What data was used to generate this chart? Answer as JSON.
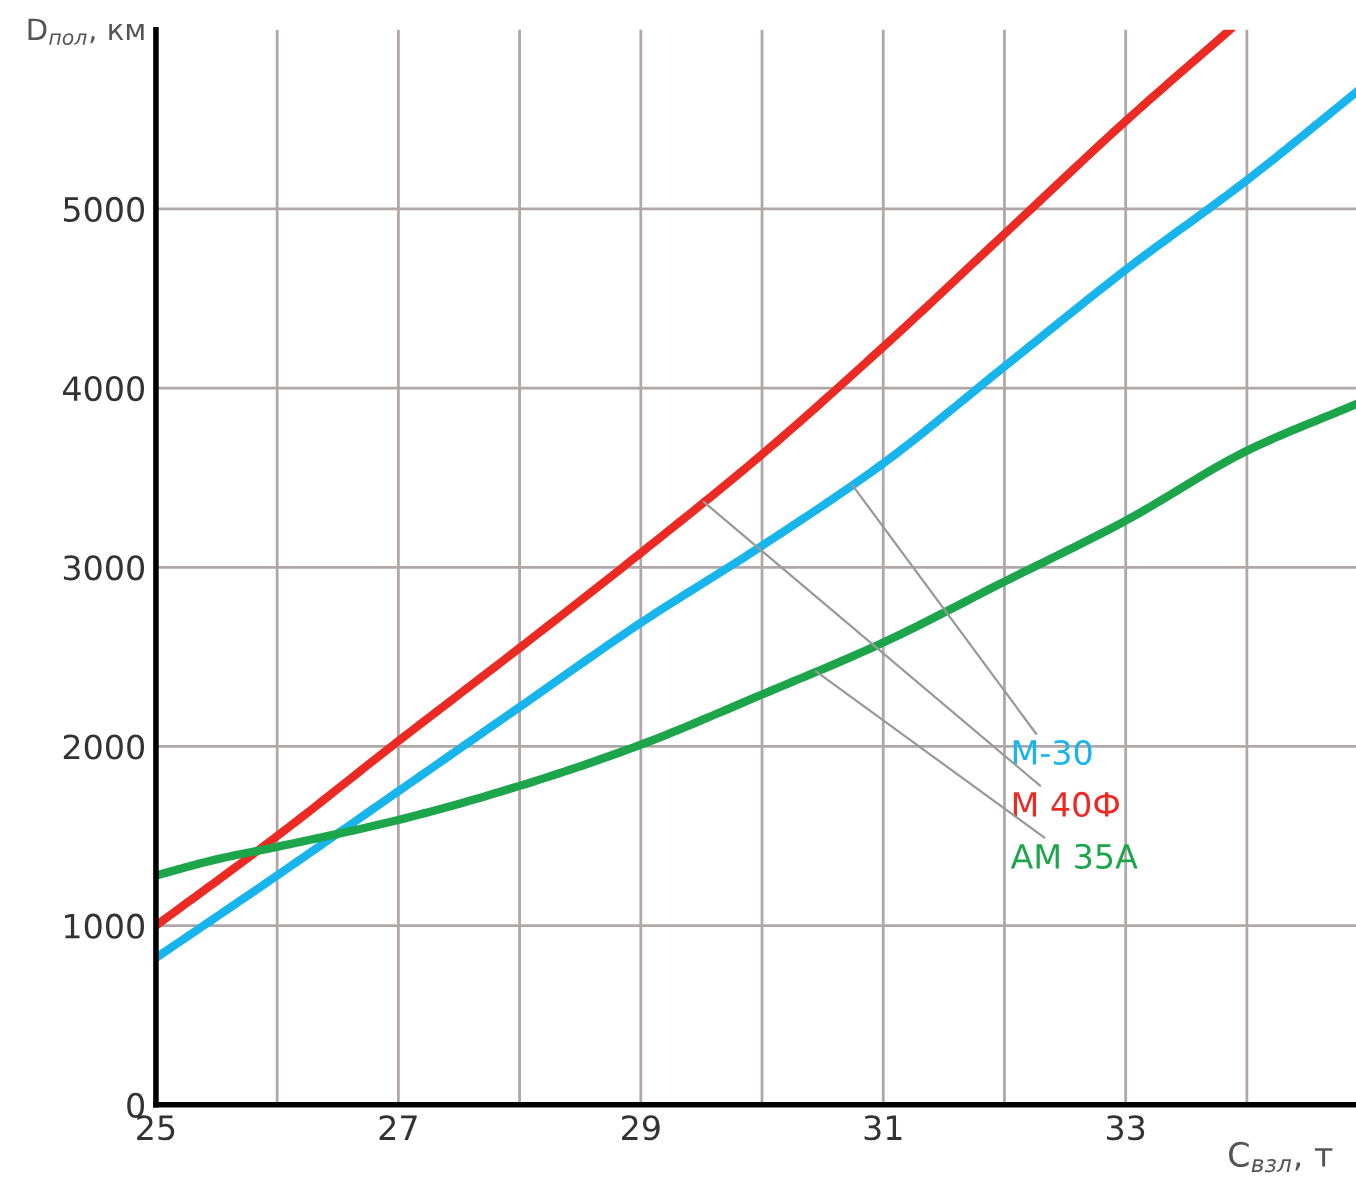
{
  "chart_data": {
    "type": "line",
    "ylabel": "D$_{пол}$, км",
    "xlabel": "C$_{взл}$, т",
    "xlim": [
      25,
      34.9
    ],
    "ylim": [
      0,
      6000
    ],
    "xticks": [
      25,
      {
        "value": 26,
        "label": null
      },
      27,
      {
        "value": 28,
        "label": null
      },
      29,
      {
        "value": 30,
        "label": null
      },
      31,
      {
        "value": 32,
        "label": null
      },
      33,
      {
        "value": 34,
        "label": null
      }
    ],
    "yticks": [
      0,
      1000,
      2000,
      3000,
      4000,
      5000
    ],
    "grid": true,
    "line_style": "solid",
    "marker": "none",
    "legend": false,
    "series": [
      {
        "name": "M-30",
        "color": "#18b4ec",
        "x": [
          25,
          26,
          27,
          28,
          29,
          30,
          31,
          32,
          33,
          34,
          34.9
        ],
        "values": [
          820,
          1280,
          1750,
          2220,
          2690,
          3120,
          3580,
          4120,
          4660,
          5160,
          5650
        ]
      },
      {
        "name": "M 40Ф",
        "color": "#ec2a24",
        "x": [
          25,
          26,
          27,
          28,
          29,
          30,
          31,
          32,
          33,
          33.86
        ],
        "values": [
          1000,
          1500,
          2030,
          2550,
          3080,
          3630,
          4230,
          4860,
          5490,
          6000
        ]
      },
      {
        "name": "AM 35A",
        "color": "#1ca54a",
        "x": [
          25,
          25.5,
          26,
          27,
          28,
          29,
          30,
          31,
          32,
          33,
          34,
          34.9
        ],
        "values": [
          1280,
          1370,
          1440,
          1590,
          1780,
          2010,
          2290,
          2580,
          2920,
          3260,
          3650,
          3910
        ]
      }
    ]
  }
}
